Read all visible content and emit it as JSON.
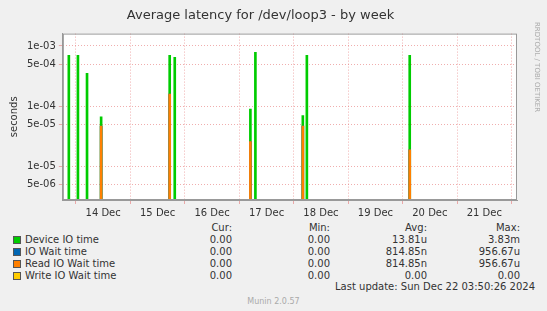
{
  "chart_data": {
    "type": "bar",
    "title": "Average latency for /dev/loop3 - by week",
    "y_label": "seconds",
    "log": "y",
    "grid": true,
    "legend": "bottom",
    "x": [
      13.37,
      13.537,
      13.704,
      13.963,
      15.222,
      15.315,
      16.704,
      16.796,
      17.667,
      17.741,
      19.63
    ],
    "xlim": [
      13.26,
      21.6
    ],
    "xticks": [
      {
        "value": 14,
        "label": "14 Dec"
      },
      {
        "value": 15,
        "label": "15 Dec"
      },
      {
        "value": 16,
        "label": "16 Dec"
      },
      {
        "value": 17,
        "label": "17 Dec"
      },
      {
        "value": 18,
        "label": "18 Dec"
      },
      {
        "value": 19,
        "label": "19 Dec"
      },
      {
        "value": 20,
        "label": "20 Dec"
      },
      {
        "value": 21,
        "label": "21 Dec"
      }
    ],
    "ylim": [
      2.8e-06,
      0.0016
    ],
    "yticks": [
      {
        "value": 5e-06,
        "label": "5e-06"
      },
      {
        "value": 1e-05,
        "label": "1e-05"
      },
      {
        "value": 5e-05,
        "label": "5e-05"
      },
      {
        "value": 0.0001,
        "label": "1e-04"
      },
      {
        "value": 0.0005,
        "label": "5e-04"
      },
      {
        "value": 0.001,
        "label": "1e-03"
      }
    ],
    "summary_columns": [
      "Cur:",
      "Min:",
      "Avg:",
      "Max:"
    ],
    "series": [
      {
        "name": "Device IO time",
        "color": "#00cc00",
        "values": [
          0.0007,
          0.0007,
          0.00035,
          6.7e-05,
          0.0007,
          0.00065,
          9e-05,
          0.00078,
          7e-05,
          0.0007,
          0.0007
        ],
        "summary": [
          "0.00",
          "0.00",
          "13.81u",
          "3.83m"
        ]
      },
      {
        "name": "IO Wait time",
        "color": "#0066b3",
        "values": [
          null,
          null,
          null,
          4.7e-05,
          0.00016,
          null,
          2.6e-05,
          null,
          4.7e-05,
          null,
          1.9e-05
        ],
        "summary": [
          "0.00",
          "0.00",
          "814.85n",
          "956.67u"
        ]
      },
      {
        "name": "Read IO Wait time",
        "color": "#ff8000",
        "values": [
          null,
          null,
          null,
          4.7e-05,
          0.00016,
          null,
          2.6e-05,
          null,
          4.7e-05,
          null,
          1.9e-05
        ],
        "summary": [
          "0.00",
          "0.00",
          "814.85n",
          "956.67u"
        ]
      },
      {
        "name": "Write IO Wait time",
        "color": "#ffcc00",
        "values": [
          null,
          null,
          null,
          null,
          null,
          null,
          null,
          null,
          null,
          null,
          null
        ],
        "summary": [
          "0.00",
          "0.00",
          "0.00",
          "0.00"
        ]
      }
    ],
    "last_update": "Last update: Sun Dec 22 03:50:26 2024",
    "footer": "Munin 2.0.57",
    "watermark": "RRDTOOL / TOBI OETIKER"
  }
}
